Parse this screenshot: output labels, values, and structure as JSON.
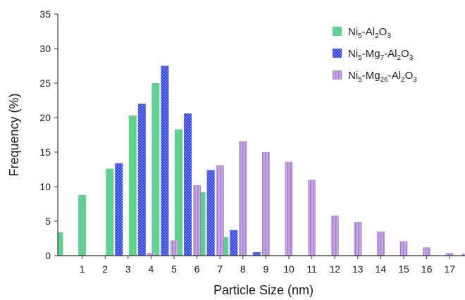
{
  "chart_data": {
    "type": "bar",
    "xlabel": "Particle Size (nm)",
    "ylabel": "Frequency (%)",
    "ylim": [
      0,
      35
    ],
    "yticks": [
      0,
      5,
      10,
      15,
      20,
      25,
      30,
      35
    ],
    "xlim": [
      0,
      17.7
    ],
    "xticks": [
      1,
      2,
      3,
      4,
      5,
      6,
      7,
      8,
      9,
      10,
      11,
      12,
      13,
      14,
      15,
      16,
      17
    ],
    "grid": false,
    "legend_position": "top-right",
    "series": [
      {
        "name": "Ni5-Al2O3",
        "name_parts": [
          [
            "Ni",
            ""
          ],
          [
            "5",
            "sub"
          ],
          [
            "-Al",
            ""
          ],
          [
            "2",
            "sub"
          ],
          [
            "O",
            ""
          ],
          [
            "3",
            "sub"
          ]
        ],
        "color": "#5fd08f",
        "pattern": "solid",
        "x": [
          0,
          1,
          2.2,
          3.2,
          4.2,
          5.2,
          6.2,
          7.2
        ],
        "values": [
          3.4,
          8.8,
          12.6,
          20.3,
          25.0,
          18.3,
          9.2,
          2.7
        ]
      },
      {
        "name": "Ni5-Mg7-Al2O3",
        "name_parts": [
          [
            "Ni",
            ""
          ],
          [
            "5",
            "sub"
          ],
          [
            "-Mg",
            ""
          ],
          [
            "7",
            "sub"
          ],
          [
            "-Al",
            ""
          ],
          [
            "2",
            "sub"
          ],
          [
            "O",
            ""
          ],
          [
            "3",
            "sub"
          ]
        ],
        "color": "#2f3fe0",
        "pattern": "checker",
        "x": [
          2.6,
          3.6,
          4.6,
          5.6,
          6.6,
          7.6,
          8.6
        ],
        "values": [
          13.4,
          22.0,
          27.5,
          20.6,
          12.4,
          3.7,
          0.5
        ]
      },
      {
        "name": "Ni5-Mg26-Al2O3",
        "name_parts": [
          [
            "Ni",
            ""
          ],
          [
            "5",
            "sub"
          ],
          [
            "-Mg",
            ""
          ],
          [
            "26",
            "sub"
          ],
          [
            "-Al",
            ""
          ],
          [
            "2",
            "sub"
          ],
          [
            "O",
            ""
          ],
          [
            "3",
            "sub"
          ]
        ],
        "color": "#c8a8e6",
        "pattern": "vstripe",
        "x": [
          4.0,
          5.0,
          6.0,
          7.0,
          8.0,
          9.0,
          10.0,
          11.0,
          12.0,
          13.0,
          14.0,
          15.0,
          16.0,
          17.0,
          17.7
        ],
        "values": [
          0.4,
          2.2,
          10.2,
          13.1,
          16.6,
          15.0,
          13.6,
          11.0,
          5.8,
          4.9,
          3.5,
          2.1,
          1.2,
          0.4,
          0.3
        ]
      }
    ]
  }
}
